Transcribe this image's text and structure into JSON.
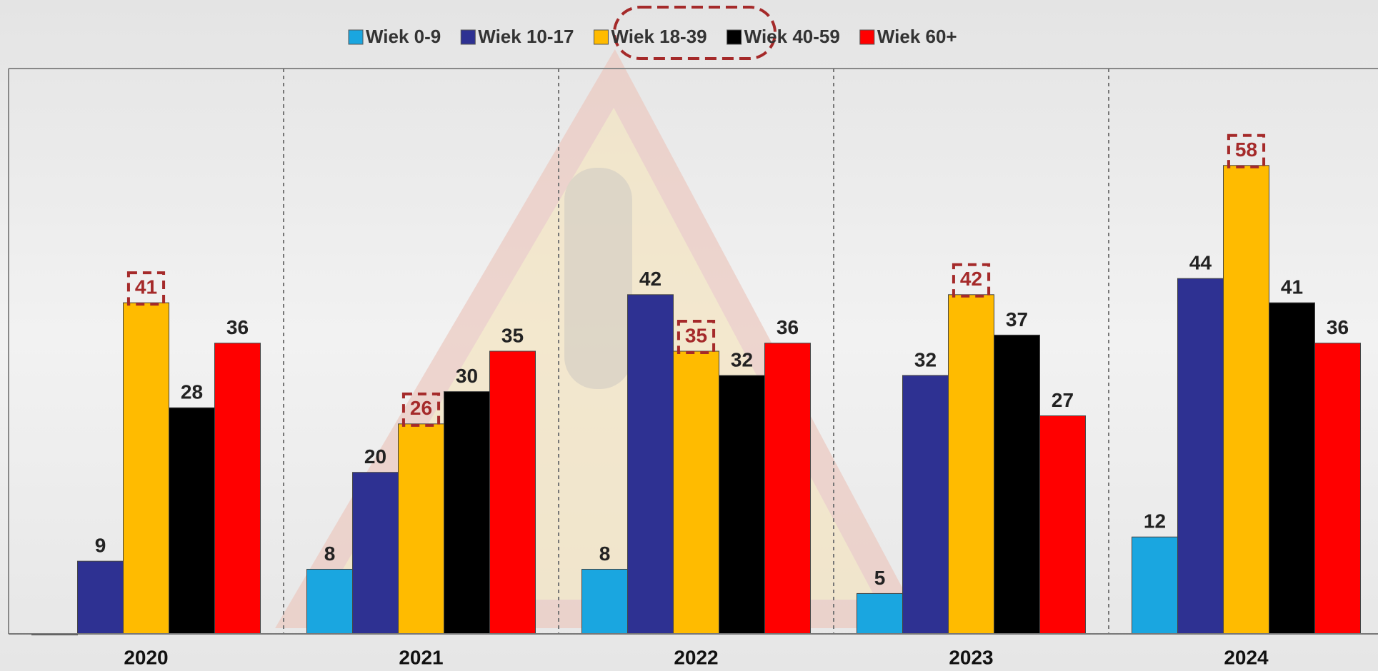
{
  "chart_data": {
    "type": "bar",
    "categories": [
      "2020",
      "2021",
      "2022",
      "2023",
      "2024"
    ],
    "series": [
      {
        "name": "Wiek 0-9",
        "color": "#1aa6e0",
        "values": [
          0,
          8,
          8,
          5,
          12
        ],
        "value_labels": [
          null,
          "8",
          "8",
          "5",
          "12"
        ]
      },
      {
        "name": "Wiek 10-17",
        "color": "#2e3192",
        "values": [
          9,
          20,
          42,
          32,
          44
        ]
      },
      {
        "name": "Wiek 18-39",
        "color": "#ffbb00",
        "values": [
          41,
          26,
          35,
          42,
          58
        ],
        "highlight": true
      },
      {
        "name": "Wiek 40-59",
        "color": "#000000",
        "values": [
          28,
          30,
          32,
          37,
          41
        ]
      },
      {
        "name": "Wiek 60+",
        "color": "#ff0000",
        "values": [
          36,
          35,
          36,
          27,
          36
        ]
      }
    ],
    "ylim": [
      0,
      70
    ]
  }
}
